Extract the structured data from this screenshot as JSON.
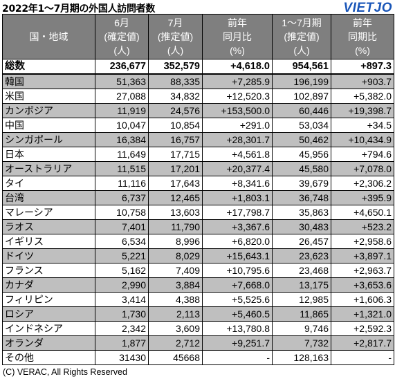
{
  "title": "2022年1〜7月期の外国人訪問者数",
  "logo": "VIETJO",
  "headers": [
    "国・地域",
    "6月\n(確定値)\n(人)",
    "7月\n(推定値)\n(人)",
    "前年\n同月比\n(%)",
    "1〜7月期\n(推定値)\n(人)",
    "前年\n同期比\n(%)"
  ],
  "total": {
    "name": "総数",
    "jun": "236,677",
    "jul": "352,579",
    "yoy_month": "+4,618.0",
    "ytd": "954,561",
    "yoy_period": "+897.3"
  },
  "rows": [
    {
      "name": "韓国",
      "jun": "51,363",
      "jul": "88,335",
      "yoy_month": "+7,285.9",
      "ytd": "196,199",
      "yoy_period": "+903.7"
    },
    {
      "name": "米国",
      "jun": "27,088",
      "jul": "34,832",
      "yoy_month": "+12,520.3",
      "ytd": "102,897",
      "yoy_period": "+5,382.0"
    },
    {
      "name": "カンボジア",
      "jun": "11,919",
      "jul": "24,576",
      "yoy_month": "+153,500.0",
      "ytd": "60,446",
      "yoy_period": "+19,398.7"
    },
    {
      "name": "中国",
      "jun": "10,047",
      "jul": "10,854",
      "yoy_month": "+291.0",
      "ytd": "53,034",
      "yoy_period": "+34.5"
    },
    {
      "name": "シンガポール",
      "jun": "16,384",
      "jul": "16,757",
      "yoy_month": "+28,301.7",
      "ytd": "50,462",
      "yoy_period": "+10,434.9"
    },
    {
      "name": "日本",
      "jun": "11,649",
      "jul": "17,715",
      "yoy_month": "+4,561.8",
      "ytd": "45,956",
      "yoy_period": "+794.6"
    },
    {
      "name": "オーストラリア",
      "jun": "11,515",
      "jul": "17,201",
      "yoy_month": "+20,377.4",
      "ytd": "45,580",
      "yoy_period": "+7,078.0"
    },
    {
      "name": "タイ",
      "jun": "11,116",
      "jul": "17,643",
      "yoy_month": "+8,341.6",
      "ytd": "39,679",
      "yoy_period": "+2,306.2"
    },
    {
      "name": "台湾",
      "jun": "6,737",
      "jul": "12,465",
      "yoy_month": "+1,803.1",
      "ytd": "36,748",
      "yoy_period": "+395.9"
    },
    {
      "name": "マレーシア",
      "jun": "10,758",
      "jul": "13,603",
      "yoy_month": "+17,798.7",
      "ytd": "35,863",
      "yoy_period": "+4,650.1"
    },
    {
      "name": "ラオス",
      "jun": "7,401",
      "jul": "11,790",
      "yoy_month": "+3,367.6",
      "ytd": "30,483",
      "yoy_period": "+523.2"
    },
    {
      "name": "イギリス",
      "jun": "6,534",
      "jul": "8,996",
      "yoy_month": "+6,820.0",
      "ytd": "26,457",
      "yoy_period": "+2,958.6"
    },
    {
      "name": "ドイツ",
      "jun": "5,221",
      "jul": "8,029",
      "yoy_month": "+15,643.1",
      "ytd": "23,623",
      "yoy_period": "+3,897.1"
    },
    {
      "name": "フランス",
      "jun": "5,162",
      "jul": "7,409",
      "yoy_month": "+10,795.6",
      "ytd": "23,468",
      "yoy_period": "+2,963.7"
    },
    {
      "name": "カナダ",
      "jun": "2,990",
      "jul": "3,884",
      "yoy_month": "+7,668.0",
      "ytd": "13,175",
      "yoy_period": "+3,653.6"
    },
    {
      "name": "フィリピン",
      "jun": "3,414",
      "jul": "4,388",
      "yoy_month": "+5,525.6",
      "ytd": "12,985",
      "yoy_period": "+1,606.3"
    },
    {
      "name": "ロシア",
      "jun": "1,730",
      "jul": "2,113",
      "yoy_month": "+5,460.5",
      "ytd": "11,865",
      "yoy_period": "+1,321.0"
    },
    {
      "name": "インドネシア",
      "jun": "2,342",
      "jul": "3,609",
      "yoy_month": "+13,780.8",
      "ytd": "9,746",
      "yoy_period": "+2,592.3"
    },
    {
      "name": "オランダ",
      "jun": "1,877",
      "jul": "2,712",
      "yoy_month": "+9,251.7",
      "ytd": "7,732",
      "yoy_period": "+2,817.7"
    }
  ],
  "other": {
    "name": "その他",
    "jun": "31430",
    "jul": "45668",
    "yoy_month": "-",
    "ytd": "128,163",
    "yoy_period": "-"
  },
  "footer": "(C) VERAC, All Rights Reserved"
}
